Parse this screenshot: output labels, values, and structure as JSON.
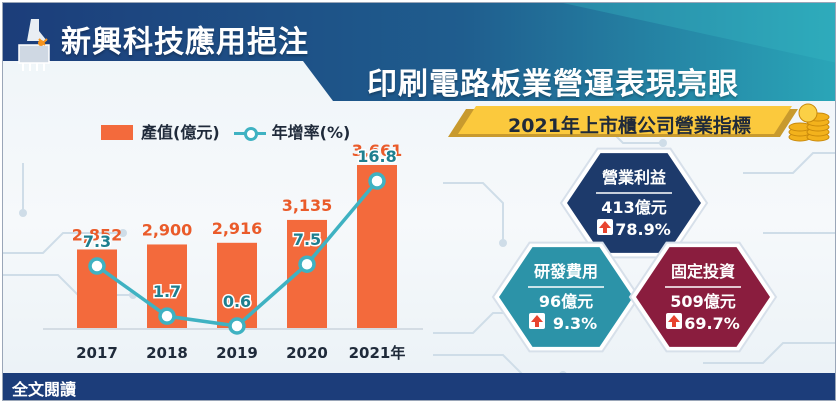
{
  "header": {
    "title_line1": "新興科技應用挹注",
    "title_line2": "印刷電路板業營運表現亮眼",
    "ribbon_title": "2021年上市櫃公司營業指標"
  },
  "legend": {
    "bar_label": "產值(億元)",
    "line_label": "年增率(%)"
  },
  "colors": {
    "bar": "#f36a3c",
    "line": "#3fb2c2",
    "header_dark": "#1c3d7a",
    "header_teal": "#2aa6b8",
    "hex_navy": "#1d3a6b",
    "hex_teal": "#2c93a8",
    "hex_maroon": "#8a1d3e",
    "arrow_up": "#e8442f"
  },
  "chart_data": {
    "type": "bar",
    "categories": [
      "2017",
      "2018",
      "2019",
      "2020",
      "2021年"
    ],
    "series": [
      {
        "name": "產值(億元)",
        "type": "bar",
        "values": [
          2852,
          2900,
          2916,
          3135,
          3661
        ],
        "labels": [
          "2,852",
          "2,900",
          "2,916",
          "3,135",
          "3,661"
        ]
      },
      {
        "name": "年增率(%)",
        "type": "line",
        "values": [
          7.3,
          1.7,
          0.6,
          7.5,
          16.8
        ],
        "labels": [
          "7.3",
          "1.7",
          "0.6",
          "7.5",
          "16.8"
        ]
      }
    ],
    "title": "",
    "xlabel": "",
    "ylabel": ""
  },
  "indicators": [
    {
      "name": "營業利益",
      "value": "413億元",
      "growth": "78.9%",
      "icon": "arrow-up-icon",
      "color": "#1d3a6b"
    },
    {
      "name": "研發費用",
      "value": "96億元",
      "growth": "9.3%",
      "icon": "arrow-up-icon",
      "color": "#2c93a8"
    },
    {
      "name": "固定投資",
      "value": "509億元",
      "growth": "69.7%",
      "icon": "arrow-up-icon",
      "color": "#8a1d3e"
    }
  ],
  "footer": {
    "read_all": "全文閱讀"
  }
}
